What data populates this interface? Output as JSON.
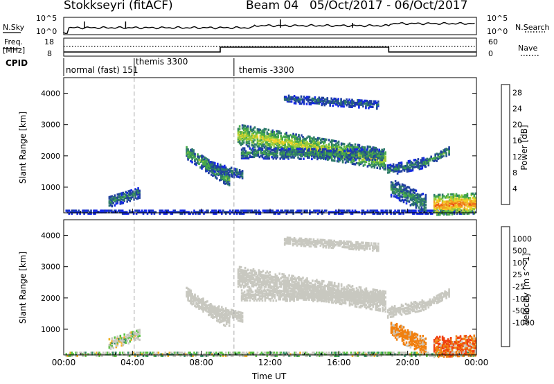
{
  "header": {
    "station": "Stokkseyri (fitACF)",
    "beam": "Beam 04",
    "dates": "05/Oct/2017 - 06/Oct/2017"
  },
  "top_panels": {
    "nsky_label": "N.Sky",
    "nsearch_label": "N.Search",
    "noise_ticks": [
      "10^5",
      "10^0"
    ],
    "freq_label_1": "Freq.",
    "freq_label_2": "[MHz]",
    "freq_ticks": [
      "18",
      "8"
    ],
    "nave_label": "Nave",
    "nave_ticks": [
      "60",
      "0"
    ],
    "cpid_label": "CPID",
    "cpid_segments": [
      {
        "label": "normal (fast) 151",
        "start_hour": 0
      },
      {
        "label": "themis 3300",
        "start_hour": 4.1
      },
      {
        "label": "themis -3300",
        "start_hour": 9.9
      }
    ]
  },
  "chart_data": [
    {
      "type": "heatmap",
      "name": "power",
      "xlabel": "",
      "ylabel": "Slant Range [km]",
      "x_ticks": [
        "00:00",
        "04:00",
        "08:00",
        "12:00",
        "16:00",
        "20:00",
        "00:00"
      ],
      "x_range_hours": [
        0,
        24
      ],
      "y_ticks": [
        1000,
        2000,
        3000,
        4000
      ],
      "ylim": [
        180,
        4500
      ],
      "colorbar": {
        "label": "Power [dB]",
        "ticks": [
          4,
          8,
          12,
          16,
          20,
          24,
          28
        ],
        "range": [
          0,
          30
        ],
        "colors": [
          "#1428e6",
          "#2040a0",
          "#2e7a6a",
          "#46a84a",
          "#9ccc38",
          "#f0d028",
          "#f0a020",
          "#f06818",
          "#e82010"
        ]
      },
      "echo_regions": [
        {
          "start": 0.1,
          "end": 23.9,
          "center_start": 230,
          "center_end": 230,
          "width": 60,
          "level": 4
        },
        {
          "start": 2.6,
          "end": 4.4,
          "center_start": 550,
          "center_end": 850,
          "width": 170,
          "level": 9
        },
        {
          "start": 7.1,
          "end": 9.6,
          "center_start": 2150,
          "center_end": 1250,
          "width": 220,
          "level": 12
        },
        {
          "start": 8.5,
          "end": 10.4,
          "center_start": 1700,
          "center_end": 1400,
          "width": 150,
          "level": 8
        },
        {
          "start": 10.1,
          "end": 18.7,
          "center_start": 2700,
          "center_end": 1900,
          "width": 320,
          "level": 17
        },
        {
          "start": 10.3,
          "end": 18.6,
          "center_start": 2100,
          "center_end": 2050,
          "width": 160,
          "level": 10
        },
        {
          "start": 12.8,
          "end": 18.3,
          "center_start": 3850,
          "center_end": 3650,
          "width": 130,
          "level": 7
        },
        {
          "start": 18.8,
          "end": 21.0,
          "center_start": 1550,
          "center_end": 1800,
          "width": 160,
          "level": 9
        },
        {
          "start": 21.0,
          "end": 22.4,
          "center_start": 1800,
          "center_end": 2200,
          "width": 130,
          "level": 11
        },
        {
          "start": 19.0,
          "end": 21.0,
          "center_start": 1000,
          "center_end": 500,
          "width": 280,
          "level": 10
        },
        {
          "start": 21.5,
          "end": 23.9,
          "center_start": 450,
          "center_end": 500,
          "width": 320,
          "level": 24
        }
      ]
    },
    {
      "type": "heatmap",
      "name": "velocity",
      "xlabel": "Time UT",
      "ylabel": "Slant Range [km]",
      "x_ticks": [
        "00:00",
        "04:00",
        "08:00",
        "12:00",
        "16:00",
        "20:00",
        "00:00"
      ],
      "x_range_hours": [
        0,
        24
      ],
      "y_ticks": [
        1000,
        2000,
        3000,
        4000
      ],
      "ylim": [
        180,
        4500
      ],
      "colorbar": {
        "label": "Velocity [m s^-1]",
        "ticks": [
          "1000",
          "500",
          "100",
          "25",
          "-25",
          "-100",
          "-500",
          "-1000"
        ],
        "colors": [
          "#1c2cb8",
          "#2a5ca8",
          "#2e8a60",
          "#58c040",
          "#c8c8c0",
          "#c8c8c0",
          "#f0b020",
          "#f08010",
          "#f04010",
          "#e81010"
        ]
      },
      "echo_regions": [
        {
          "start": 0.1,
          "end": 23.9,
          "center_start": 230,
          "center_end": 230,
          "width": 60,
          "level": 28
        },
        {
          "start": 2.6,
          "end": 4.4,
          "center_start": 550,
          "center_end": 850,
          "width": 170,
          "level": 10
        },
        {
          "start": 7.1,
          "end": 9.6,
          "center_start": 2150,
          "center_end": 1250,
          "width": 220,
          "level": 0
        },
        {
          "start": 8.5,
          "end": 10.4,
          "center_start": 1700,
          "center_end": 1400,
          "width": 150,
          "level": 0
        },
        {
          "start": 10.1,
          "end": 18.7,
          "center_start": 2700,
          "center_end": 1900,
          "width": 320,
          "level": 0
        },
        {
          "start": 10.3,
          "end": 18.6,
          "center_start": 2100,
          "center_end": 2050,
          "width": 160,
          "level": 0
        },
        {
          "start": 12.8,
          "end": 18.3,
          "center_start": 3850,
          "center_end": 3650,
          "width": 130,
          "level": 0
        },
        {
          "start": 18.8,
          "end": 21.0,
          "center_start": 1550,
          "center_end": 1800,
          "width": 160,
          "level": 0
        },
        {
          "start": 21.0,
          "end": 22.4,
          "center_start": 1800,
          "center_end": 2200,
          "width": 130,
          "level": 0
        },
        {
          "start": 19.0,
          "end": 21.0,
          "center_start": 1000,
          "center_end": 500,
          "width": 280,
          "level": -200
        },
        {
          "start": 21.5,
          "end": 23.9,
          "center_start": 450,
          "center_end": 500,
          "width": 320,
          "level": -300
        }
      ]
    }
  ]
}
